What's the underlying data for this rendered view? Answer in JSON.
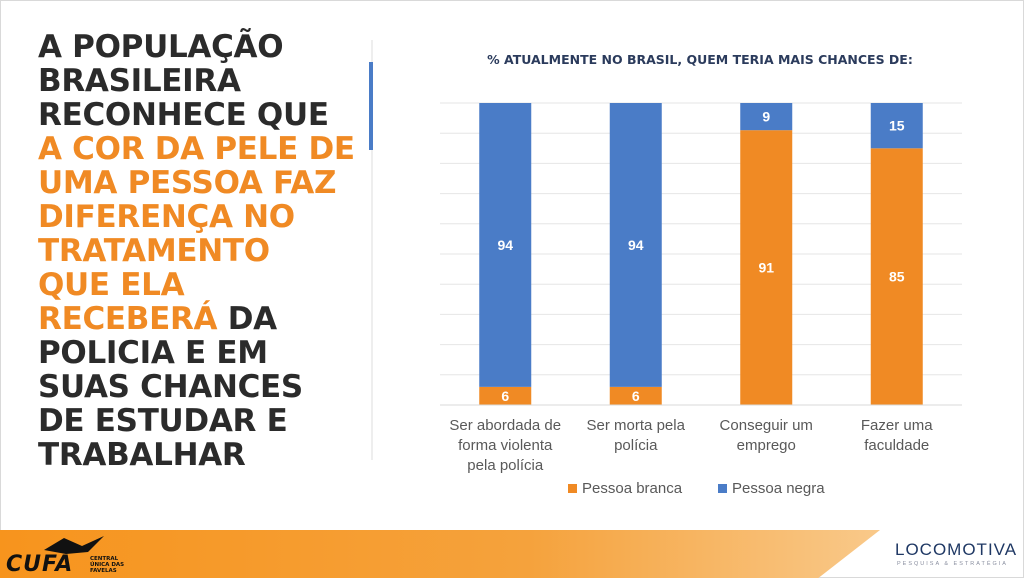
{
  "headline": {
    "line1": "A POPULAÇÃO",
    "line2": "BRASILEIRA",
    "line3": "RECONHECE QUE",
    "hl1": "A COR DA PELE DE",
    "hl2": "UMA PESSOA FAZ",
    "hl3": "DIFERENÇA NO",
    "hl4": "TRATAMENTO",
    "hl5": "QUE ELA",
    "hl6": "RECEBERÁ",
    "rest1": " DA",
    "rest2": "POLICIA E EM",
    "rest3": "SUAS CHANCES",
    "rest4": "DE ESTUDAR E",
    "rest5": "TRABALHAR"
  },
  "colors": {
    "orange": "#f08a24",
    "blue": "#4a7cc7",
    "text_dark": "#2b2b2b"
  },
  "chart_data": {
    "type": "bar",
    "stacked": true,
    "title": "% ATUALMENTE NO BRASIL, QUEM TERIA MAIS CHANCES DE:",
    "categories": [
      [
        "Ser abordada de",
        "forma violenta",
        "pela polícia"
      ],
      [
        "Ser morta pela",
        "polícia"
      ],
      [
        "Conseguir um",
        "emprego"
      ],
      [
        "Fazer uma",
        "faculdade"
      ]
    ],
    "series": [
      {
        "name": "Pessoa branca",
        "color": "#f08a24",
        "values": [
          6,
          6,
          91,
          85
        ]
      },
      {
        "name": "Pessoa negra",
        "color": "#4a7cc7",
        "values": [
          94,
          94,
          9,
          15
        ]
      }
    ],
    "ylim": [
      0,
      100
    ],
    "grid": true,
    "legend": "bottom"
  },
  "logos": {
    "cufa": "CUFA",
    "cufa_sub": "CENTRAL ÚNICA DAS FAVELAS",
    "locomotiva": "LOCOMOTIVA",
    "locomotiva_sub": "PESQUISA & ESTRATÉGIA"
  }
}
